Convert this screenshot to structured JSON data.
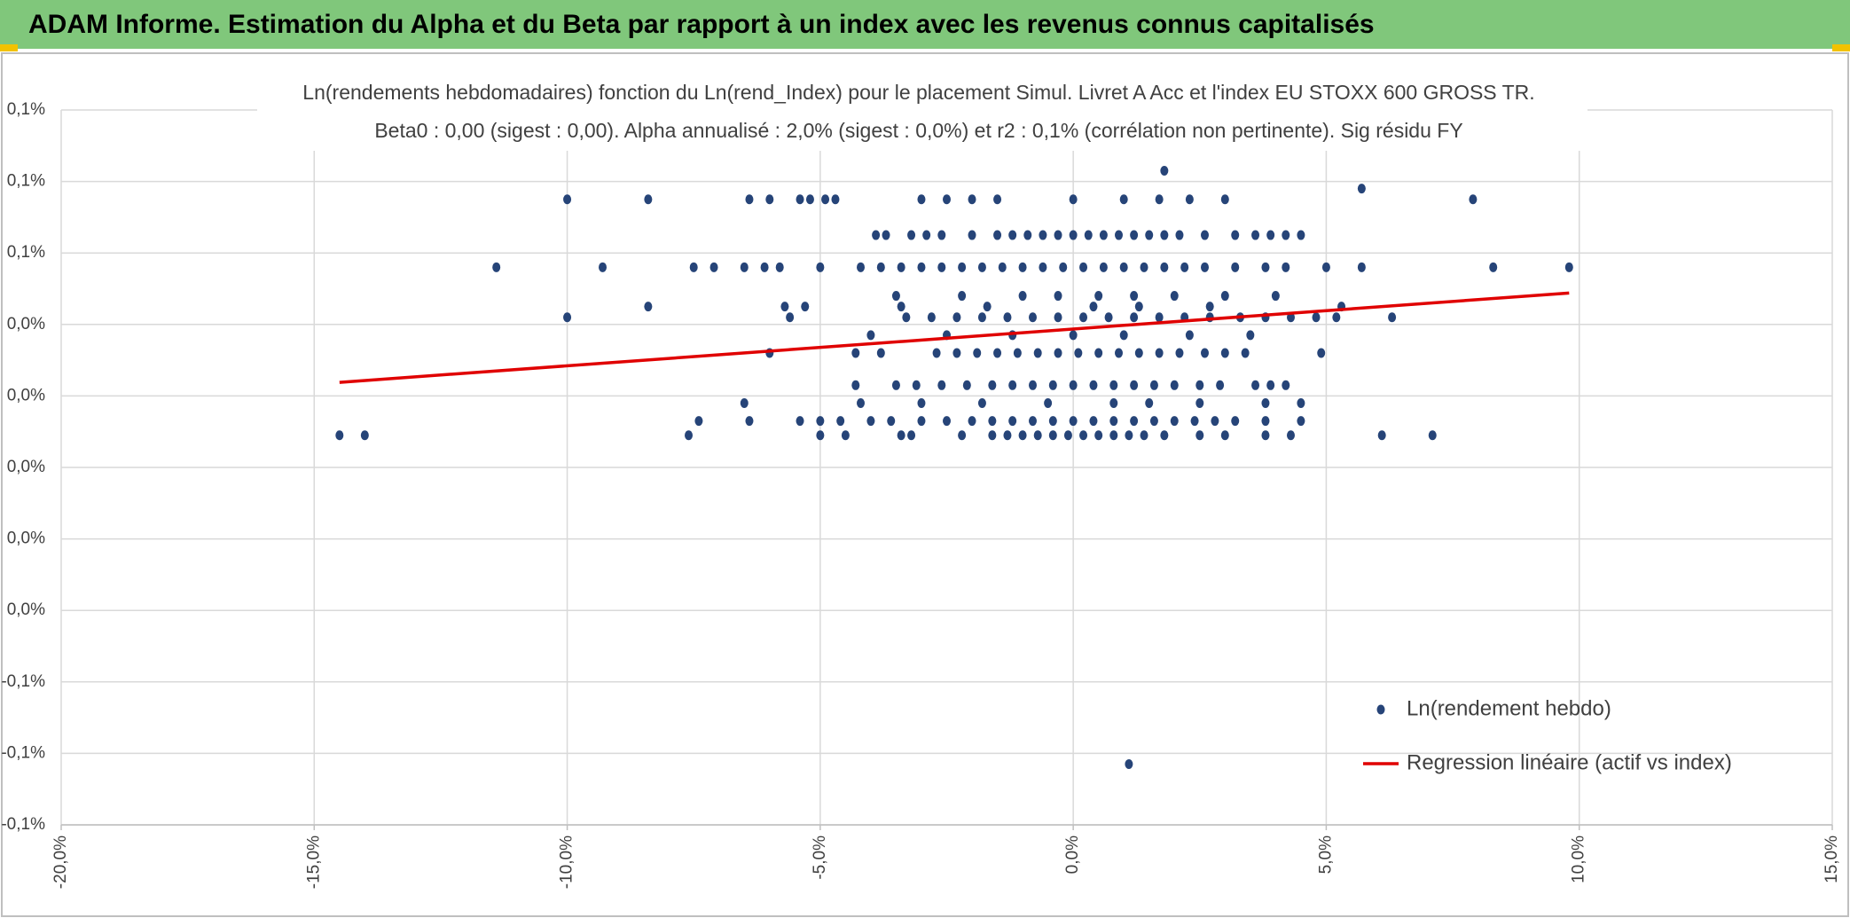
{
  "header": {
    "title": "ADAM Informe. Estimation du Alpha et du Beta par rapport à un index avec les revenus connus capitalisés"
  },
  "chart_data": {
    "type": "scatter",
    "title": "Ln(rendements hebdomadaires) fonction du Ln(rend_Index) pour le placement Simul. Livret A Acc et l'index EU STOXX 600 GROSS TR.",
    "subtitle": "Beta0 : 0,00 (sigest : 0,00). Alpha annualisé : 2,0% (sigest : 0,0%) et r2 : 0,1% (corrélation non pertinente). Sig résidu FY",
    "xlim": [
      -20,
      15
    ],
    "xticks": [
      {
        "value": -20,
        "label": "-20,0%"
      },
      {
        "value": -15,
        "label": "-15,0%"
      },
      {
        "value": -10,
        "label": "-10,0%"
      },
      {
        "value": -5,
        "label": "-5,0%"
      },
      {
        "value": 0,
        "label": "0,0%"
      },
      {
        "value": 5,
        "label": "5,0%"
      },
      {
        "value": 10,
        "label": "10,0%"
      },
      {
        "value": 15,
        "label": "15,0%"
      }
    ],
    "ylim": [
      -0.1,
      0.1
    ],
    "yticks": [
      {
        "value": 0.1,
        "label": "0,1%"
      },
      {
        "value": 0.08,
        "label": "0,1%"
      },
      {
        "value": 0.06,
        "label": "0,1%"
      },
      {
        "value": 0.04,
        "label": "0,0%"
      },
      {
        "value": 0.02,
        "label": "0,0%"
      },
      {
        "value": 0,
        "label": "0,0%"
      },
      {
        "value": -0.02,
        "label": "0,0%"
      },
      {
        "value": -0.04,
        "label": "0,0%"
      },
      {
        "value": -0.06,
        "label": "-0,1%"
      },
      {
        "value": -0.08,
        "label": "-0,1%"
      },
      {
        "value": -0.1,
        "label": "-0,1%"
      }
    ],
    "grid": true,
    "series": [
      {
        "name": "Ln(rendement hebdo)",
        "color": "#264478",
        "type": "scatter",
        "x": [
          1.8,
          5.7,
          -10,
          -8.4,
          -6.4,
          -6,
          -5.4,
          -5.2,
          -4.9,
          -4.7,
          -3,
          -2.5,
          -2,
          -1.5,
          0,
          1,
          1.7,
          2.3,
          3,
          7.9,
          -3.9,
          -3.7,
          -3.2,
          -2.9,
          -2.6,
          -2,
          -1.5,
          -1.2,
          -0.9,
          -0.6,
          -0.3,
          0,
          0.3,
          0.6,
          0.9,
          1.2,
          1.5,
          1.8,
          2.1,
          2.6,
          3.2,
          3.6,
          3.9,
          4.2,
          4.5,
          -11.4,
          -9.3,
          -7.5,
          -7.1,
          -6.5,
          -6.1,
          -5.8,
          -5,
          -4.2,
          -3.8,
          -3.4,
          -3,
          -2.6,
          -2.2,
          -1.8,
          -1.4,
          -1,
          -0.6,
          -0.2,
          0.2,
          0.6,
          1,
          1.4,
          1.8,
          2.2,
          2.6,
          3.2,
          3.8,
          4.2,
          5,
          5.7,
          8.3,
          9.8,
          -3.5,
          -2.2,
          -1,
          -0.3,
          0.5,
          1.2,
          2,
          3,
          4,
          -8.4,
          -5.7,
          -5.3,
          -3.4,
          -1.7,
          0.4,
          1.3,
          2.7,
          5.3,
          -10,
          -5.6,
          -3.3,
          -2.8,
          -2.3,
          -1.8,
          -1.3,
          -0.8,
          -0.3,
          0.2,
          0.7,
          1.2,
          1.7,
          2.2,
          2.7,
          3.3,
          3.8,
          4.3,
          4.8,
          5.2,
          6.3,
          -4,
          -2.5,
          -1.2,
          0,
          1,
          2.3,
          3.5,
          -6,
          -4.3,
          -3.8,
          -2.7,
          -2.3,
          -1.9,
          -1.5,
          -1.1,
          -0.7,
          -0.3,
          0.1,
          0.5,
          0.9,
          1.3,
          1.7,
          2.1,
          2.6,
          3,
          3.4,
          4.9,
          -4.3,
          -3.5,
          -3.1,
          -2.6,
          -2.1,
          -1.6,
          -1.2,
          -0.8,
          -0.4,
          0,
          0.4,
          0.8,
          1.2,
          1.6,
          2,
          2.5,
          2.9,
          3.6,
          3.9,
          4.2,
          -6.5,
          -4.2,
          -3,
          -1.8,
          -0.5,
          0.8,
          1.5,
          2.5,
          3.8,
          4.5,
          -7.4,
          -6.4,
          -5.4,
          -5,
          -4.6,
          -4,
          -3.6,
          -3,
          -2.5,
          -2,
          -1.6,
          -1.2,
          -0.8,
          -0.4,
          0,
          0.4,
          0.8,
          1.2,
          1.6,
          2,
          2.4,
          2.8,
          3.2,
          3.8,
          4.5,
          -14.5,
          -14,
          -7.6,
          -5,
          -4.5,
          -3.4,
          -3.2,
          -2.2,
          -1.6,
          -1.3,
          -1,
          -0.7,
          -0.4,
          -0.1,
          0.2,
          0.5,
          0.8,
          1.1,
          1.4,
          1.8,
          2.5,
          3,
          3.8,
          4.3,
          6.1,
          7.1,
          1.1
        ],
        "values": [
          0.083,
          0.078,
          0.075,
          0.075,
          0.075,
          0.075,
          0.075,
          0.075,
          0.075,
          0.075,
          0.075,
          0.075,
          0.075,
          0.075,
          0.075,
          0.075,
          0.075,
          0.075,
          0.075,
          0.075,
          0.065,
          0.065,
          0.065,
          0.065,
          0.065,
          0.065,
          0.065,
          0.065,
          0.065,
          0.065,
          0.065,
          0.065,
          0.065,
          0.065,
          0.065,
          0.065,
          0.065,
          0.065,
          0.065,
          0.065,
          0.065,
          0.065,
          0.065,
          0.065,
          0.065,
          0.056,
          0.056,
          0.056,
          0.056,
          0.056,
          0.056,
          0.056,
          0.056,
          0.056,
          0.056,
          0.056,
          0.056,
          0.056,
          0.056,
          0.056,
          0.056,
          0.056,
          0.056,
          0.056,
          0.056,
          0.056,
          0.056,
          0.056,
          0.056,
          0.056,
          0.056,
          0.056,
          0.056,
          0.056,
          0.056,
          0.056,
          0.056,
          0.056,
          0.048,
          0.048,
          0.048,
          0.048,
          0.048,
          0.048,
          0.048,
          0.048,
          0.048,
          0.045,
          0.045,
          0.045,
          0.045,
          0.045,
          0.045,
          0.045,
          0.045,
          0.045,
          0.042,
          0.042,
          0.042,
          0.042,
          0.042,
          0.042,
          0.042,
          0.042,
          0.042,
          0.042,
          0.042,
          0.042,
          0.042,
          0.042,
          0.042,
          0.042,
          0.042,
          0.042,
          0.042,
          0.042,
          0.042,
          0.037,
          0.037,
          0.037,
          0.037,
          0.037,
          0.037,
          0.037,
          0.032,
          0.032,
          0.032,
          0.032,
          0.032,
          0.032,
          0.032,
          0.032,
          0.032,
          0.032,
          0.032,
          0.032,
          0.032,
          0.032,
          0.032,
          0.032,
          0.032,
          0.032,
          0.032,
          0.032,
          0.023,
          0.023,
          0.023,
          0.023,
          0.023,
          0.023,
          0.023,
          0.023,
          0.023,
          0.023,
          0.023,
          0.023,
          0.023,
          0.023,
          0.023,
          0.023,
          0.023,
          0.023,
          0.023,
          0.023,
          0.018,
          0.018,
          0.018,
          0.018,
          0.018,
          0.018,
          0.018,
          0.018,
          0.018,
          0.018,
          0.013,
          0.013,
          0.013,
          0.013,
          0.013,
          0.013,
          0.013,
          0.013,
          0.013,
          0.013,
          0.013,
          0.013,
          0.013,
          0.013,
          0.013,
          0.013,
          0.013,
          0.013,
          0.013,
          0.013,
          0.013,
          0.013,
          0.013,
          0.013,
          0.013,
          0.009,
          0.009,
          0.009,
          0.009,
          0.009,
          0.009,
          0.009,
          0.009,
          0.009,
          0.009,
          0.009,
          0.009,
          0.009,
          0.009,
          0.009,
          0.009,
          0.009,
          0.009,
          0.009,
          0.009,
          0.009,
          0.009,
          0.009,
          0.009,
          0.009,
          0.009,
          -0.083
        ]
      },
      {
        "name": "Regression linéaire (actif vs index)",
        "color": "#e00000",
        "type": "line",
        "x": [
          -14.5,
          9.8
        ],
        "values": [
          0.0238,
          0.0488
        ]
      }
    ]
  }
}
